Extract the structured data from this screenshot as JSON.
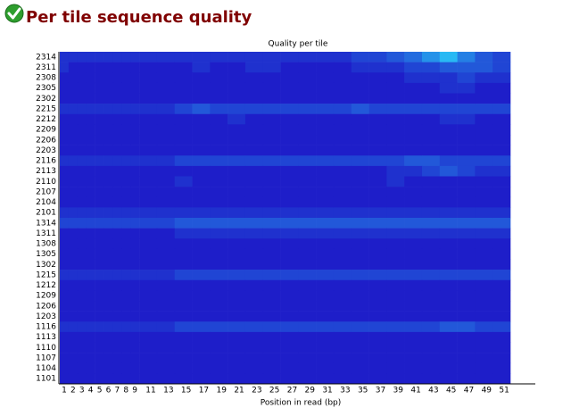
{
  "header": {
    "title": "Per tile sequence quality"
  },
  "chart_data": {
    "type": "heatmap",
    "title": "Quality per tile",
    "x_label": "Position in read (bp)",
    "categories": [
      1,
      2,
      3,
      4,
      5,
      6,
      7,
      8,
      9,
      11,
      13,
      15,
      17,
      19,
      21,
      23,
      25,
      27,
      29,
      31,
      33,
      35,
      37,
      39,
      41,
      43,
      45,
      47,
      49,
      51
    ],
    "y_categories": [
      2314,
      2311,
      2308,
      2305,
      2302,
      2215,
      2212,
      2209,
      2206,
      2203,
      2116,
      2113,
      2110,
      2107,
      2104,
      2101,
      1314,
      1311,
      1308,
      1305,
      1302,
      1215,
      1212,
      1209,
      1206,
      1203,
      1116,
      1113,
      1110,
      1107,
      1104,
      1101
    ],
    "zlim": [
      0,
      10
    ],
    "colors": [
      "#1e1ec9",
      "#2ae0ff"
    ],
    "values": [
      [
        1,
        1,
        1,
        1,
        1,
        1,
        1,
        1,
        1,
        1,
        1,
        1,
        1,
        1,
        1,
        1,
        1,
        1,
        1,
        1,
        1,
        2,
        2,
        3,
        4,
        6,
        8,
        5,
        3,
        2
      ],
      [
        1,
        0,
        0,
        0,
        0,
        0,
        0,
        0,
        0,
        0,
        0,
        0,
        1,
        0,
        0,
        1,
        1,
        0,
        0,
        0,
        0,
        1,
        1,
        1,
        2,
        2,
        3,
        3,
        3,
        2
      ],
      [
        0,
        0,
        0,
        0,
        0,
        0,
        0,
        0,
        0,
        0,
        0,
        0,
        0,
        0,
        0,
        0,
        0,
        0,
        0,
        0,
        0,
        0,
        0,
        0,
        1,
        1,
        1,
        2,
        1,
        1
      ],
      [
        0,
        0,
        0,
        0,
        0,
        0,
        0,
        0,
        0,
        0,
        0,
        0,
        0,
        0,
        0,
        0,
        0,
        0,
        0,
        0,
        0,
        0,
        0,
        0,
        0,
        0,
        1,
        1,
        0,
        0
      ],
      [
        0,
        0,
        0,
        0,
        0,
        0,
        0,
        0,
        0,
        0,
        0,
        0,
        0,
        0,
        0,
        0,
        0,
        0,
        0,
        0,
        0,
        0,
        0,
        0,
        0,
        0,
        0,
        0,
        0,
        0
      ],
      [
        1,
        1,
        1,
        1,
        1,
        1,
        1,
        1,
        1,
        1,
        1,
        2,
        3,
        2,
        2,
        2,
        2,
        2,
        2,
        2,
        2,
        3,
        2,
        2,
        2,
        2,
        2,
        2,
        2,
        2
      ],
      [
        0,
        0,
        0,
        0,
        0,
        0,
        0,
        0,
        0,
        0,
        0,
        0,
        0,
        0,
        1,
        0,
        0,
        0,
        0,
        0,
        0,
        0,
        0,
        0,
        0,
        0,
        1,
        1,
        0,
        0
      ],
      [
        0,
        0,
        0,
        0,
        0,
        0,
        0,
        0,
        0,
        0,
        0,
        0,
        0,
        0,
        0,
        0,
        0,
        0,
        0,
        0,
        0,
        0,
        0,
        0,
        0,
        0,
        0,
        0,
        0,
        0
      ],
      [
        0,
        0,
        0,
        0,
        0,
        0,
        0,
        0,
        0,
        0,
        0,
        0,
        0,
        0,
        0,
        0,
        0,
        0,
        0,
        0,
        0,
        0,
        0,
        0,
        0,
        0,
        0,
        0,
        0,
        0
      ],
      [
        0,
        0,
        0,
        0,
        0,
        0,
        0,
        0,
        0,
        0,
        0,
        0,
        0,
        0,
        0,
        0,
        0,
        0,
        0,
        0,
        0,
        0,
        0,
        0,
        0,
        0,
        0,
        0,
        0,
        0
      ],
      [
        1,
        1,
        1,
        1,
        1,
        1,
        1,
        1,
        1,
        1,
        1,
        2,
        2,
        2,
        2,
        2,
        2,
        2,
        2,
        2,
        2,
        2,
        2,
        2,
        3,
        3,
        2,
        2,
        2,
        2
      ],
      [
        0,
        0,
        0,
        0,
        0,
        0,
        0,
        0,
        0,
        0,
        0,
        0,
        0,
        0,
        0,
        0,
        0,
        0,
        0,
        0,
        0,
        0,
        0,
        1,
        1,
        2,
        3,
        2,
        1,
        1
      ],
      [
        0,
        0,
        0,
        0,
        0,
        0,
        0,
        0,
        0,
        0,
        0,
        1,
        0,
        0,
        0,
        0,
        0,
        0,
        0,
        0,
        0,
        0,
        0,
        1,
        0,
        0,
        0,
        0,
        0,
        0
      ],
      [
        0,
        0,
        0,
        0,
        0,
        0,
        0,
        0,
        0,
        0,
        0,
        0,
        0,
        0,
        0,
        0,
        0,
        0,
        0,
        0,
        0,
        0,
        0,
        0,
        0,
        0,
        0,
        0,
        0,
        0
      ],
      [
        0,
        0,
        0,
        0,
        0,
        0,
        0,
        0,
        0,
        0,
        0,
        0,
        0,
        0,
        0,
        0,
        0,
        0,
        0,
        0,
        0,
        0,
        0,
        0,
        0,
        0,
        0,
        0,
        0,
        0
      ],
      [
        1,
        1,
        1,
        1,
        1,
        1,
        1,
        1,
        1,
        1,
        1,
        1,
        1,
        1,
        1,
        1,
        1,
        1,
        1,
        1,
        1,
        1,
        1,
        1,
        1,
        1,
        1,
        1,
        1,
        1
      ],
      [
        2,
        2,
        2,
        2,
        2,
        2,
        2,
        2,
        2,
        2,
        2,
        3,
        3,
        3,
        3,
        3,
        3,
        3,
        3,
        3,
        3,
        3,
        3,
        3,
        3,
        3,
        3,
        3,
        3,
        3
      ],
      [
        0,
        0,
        0,
        0,
        0,
        0,
        0,
        0,
        0,
        0,
        0,
        1,
        1,
        1,
        1,
        1,
        1,
        1,
        1,
        1,
        1,
        1,
        1,
        1,
        1,
        1,
        1,
        1,
        1,
        1
      ],
      [
        0,
        0,
        0,
        0,
        0,
        0,
        0,
        0,
        0,
        0,
        0,
        0,
        0,
        0,
        0,
        0,
        0,
        0,
        0,
        0,
        0,
        0,
        0,
        0,
        0,
        0,
        0,
        0,
        0,
        0
      ],
      [
        0,
        0,
        0,
        0,
        0,
        0,
        0,
        0,
        0,
        0,
        0,
        0,
        0,
        0,
        0,
        0,
        0,
        0,
        0,
        0,
        0,
        0,
        0,
        0,
        0,
        0,
        0,
        0,
        0,
        0
      ],
      [
        0,
        0,
        0,
        0,
        0,
        0,
        0,
        0,
        0,
        0,
        0,
        0,
        0,
        0,
        0,
        0,
        0,
        0,
        0,
        0,
        0,
        0,
        0,
        0,
        0,
        0,
        0,
        0,
        0,
        0
      ],
      [
        1,
        1,
        1,
        1,
        1,
        1,
        1,
        1,
        1,
        1,
        1,
        2,
        2,
        2,
        2,
        2,
        2,
        2,
        2,
        2,
        2,
        2,
        2,
        2,
        2,
        2,
        2,
        2,
        2,
        2
      ],
      [
        0,
        0,
        0,
        0,
        0,
        0,
        0,
        0,
        0,
        0,
        0,
        0,
        0,
        0,
        0,
        0,
        0,
        0,
        0,
        0,
        0,
        0,
        0,
        0,
        0,
        0,
        0,
        0,
        0,
        0
      ],
      [
        0,
        0,
        0,
        0,
        0,
        0,
        0,
        0,
        0,
        0,
        0,
        0,
        0,
        0,
        0,
        0,
        0,
        0,
        0,
        0,
        0,
        0,
        0,
        0,
        0,
        0,
        0,
        0,
        0,
        0
      ],
      [
        0,
        0,
        0,
        0,
        0,
        0,
        0,
        0,
        0,
        0,
        0,
        0,
        0,
        0,
        0,
        0,
        0,
        0,
        0,
        0,
        0,
        0,
        0,
        0,
        0,
        0,
        0,
        0,
        0,
        0
      ],
      [
        0,
        0,
        0,
        0,
        0,
        0,
        0,
        0,
        0,
        0,
        0,
        0,
        0,
        0,
        0,
        0,
        0,
        0,
        0,
        0,
        0,
        0,
        0,
        0,
        0,
        0,
        0,
        0,
        0,
        0
      ],
      [
        1,
        1,
        1,
        1,
        1,
        1,
        1,
        1,
        1,
        1,
        1,
        2,
        2,
        2,
        2,
        2,
        2,
        2,
        2,
        2,
        2,
        2,
        2,
        2,
        2,
        2,
        3,
        3,
        2,
        2
      ],
      [
        0,
        0,
        0,
        0,
        0,
        0,
        0,
        0,
        0,
        0,
        0,
        0,
        0,
        0,
        0,
        0,
        0,
        0,
        0,
        0,
        0,
        0,
        0,
        0,
        0,
        0,
        0,
        0,
        0,
        0
      ],
      [
        0,
        0,
        0,
        0,
        0,
        0,
        0,
        0,
        0,
        0,
        0,
        0,
        0,
        0,
        0,
        0,
        0,
        0,
        0,
        0,
        0,
        0,
        0,
        0,
        0,
        0,
        0,
        0,
        0,
        0
      ],
      [
        0,
        0,
        0,
        0,
        0,
        0,
        0,
        0,
        0,
        0,
        0,
        0,
        0,
        0,
        0,
        0,
        0,
        0,
        0,
        0,
        0,
        0,
        0,
        0,
        0,
        0,
        0,
        0,
        0,
        0
      ],
      [
        0,
        0,
        0,
        0,
        0,
        0,
        0,
        0,
        0,
        0,
        0,
        0,
        0,
        0,
        0,
        0,
        0,
        0,
        0,
        0,
        0,
        0,
        0,
        0,
        0,
        0,
        0,
        0,
        0,
        0
      ],
      [
        0,
        0,
        0,
        0,
        0,
        0,
        0,
        0,
        0,
        0,
        0,
        0,
        0,
        0,
        0,
        0,
        0,
        0,
        0,
        0,
        0,
        0,
        0,
        0,
        0,
        0,
        0,
        0,
        0,
        0
      ]
    ]
  }
}
